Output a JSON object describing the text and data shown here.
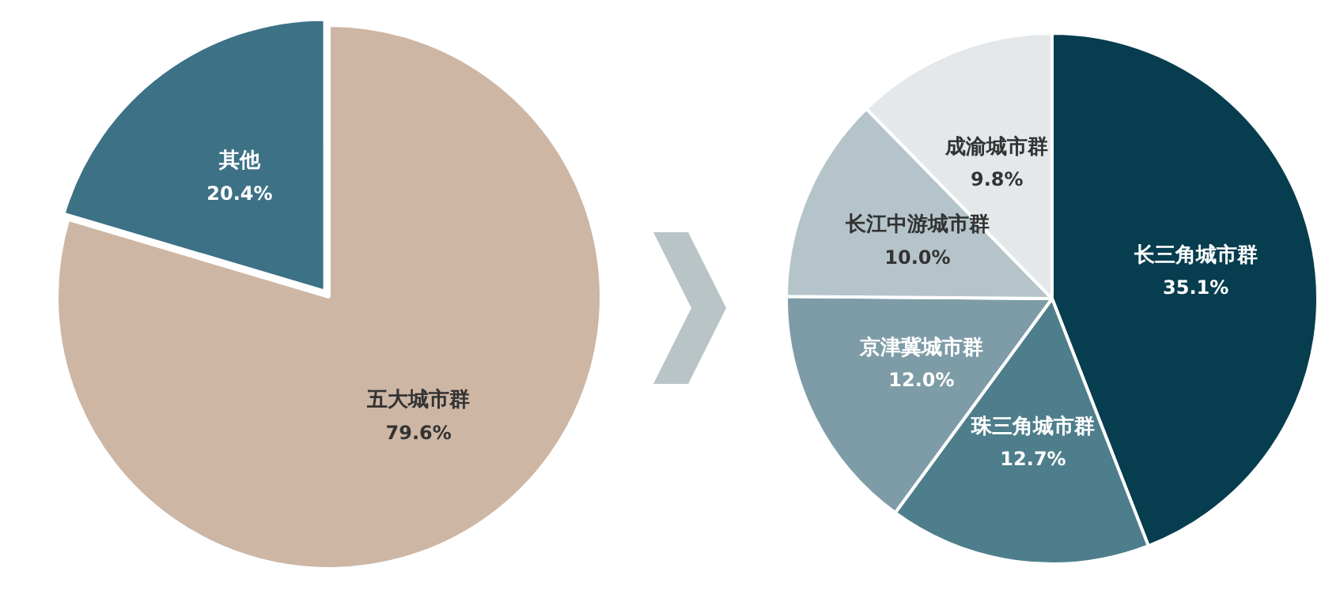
{
  "chart_data": [
    {
      "type": "pie",
      "categories": [
        "五大城市群",
        "其他"
      ],
      "values": [
        79.6,
        20.4
      ],
      "colors": [
        "#cdb6a4",
        "#3d7186"
      ],
      "value_labels": [
        "79.6%",
        "20.4%"
      ]
    },
    {
      "type": "pie",
      "categories": [
        "长三角城市群",
        "珠三角城市群",
        "京津冀城市群",
        "长江中游城市群",
        "成渝城市群"
      ],
      "values": [
        35.1,
        12.7,
        12.0,
        10.0,
        9.8
      ],
      "colors": [
        "#063d4f",
        "#4e7e8b",
        "#7e9ca7",
        "#b5c4ca",
        "#e4e8eb"
      ],
      "value_labels": [
        "35.1%",
        "12.7%",
        "12.0%",
        "10.0%",
        "9.8%"
      ]
    }
  ]
}
